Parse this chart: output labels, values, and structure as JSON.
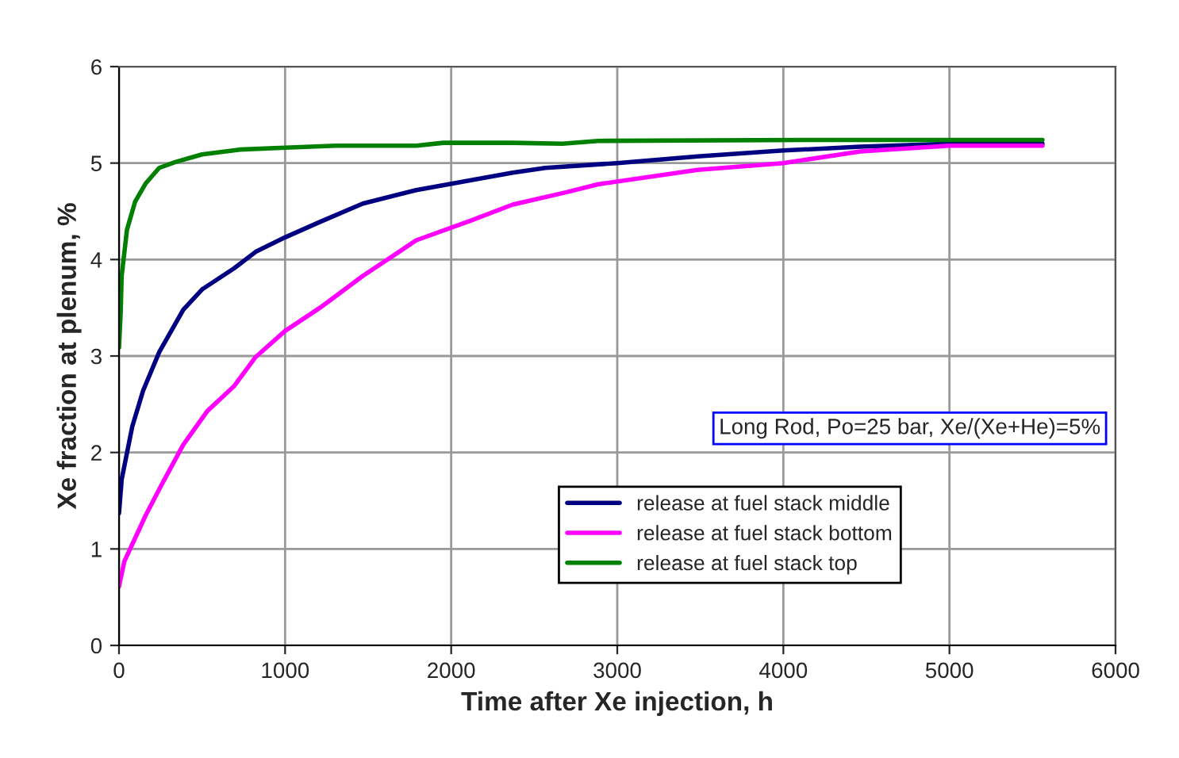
{
  "chart_data": {
    "type": "line",
    "xlabel": "Time after Xe injection, h",
    "ylabel": "Xe fraction at plenum, %",
    "annotations": [
      "Long Rod, Po=25 bar, Xe/(Xe+He)=5%"
    ],
    "xlim": [
      0,
      6000
    ],
    "xticks": [
      0,
      1000,
      2000,
      3000,
      4000,
      5000,
      6000
    ],
    "ylim": [
      0,
      6
    ],
    "yticks": [
      0,
      1,
      2,
      3,
      4,
      5,
      6
    ],
    "grid": true,
    "legend": "bottom right",
    "marker": "none",
    "line_style": "solid",
    "series": [
      {
        "name": "release at fuel stack middle",
        "color": "#000080",
        "x": [
          0,
          16,
          80,
          145,
          242,
          387,
          500,
          694,
          823,
          1000,
          1210,
          1468,
          1790,
          2113,
          2371,
          2567,
          3000,
          3484,
          4000,
          4464,
          5000,
          5560
        ],
        "values": [
          1.37,
          1.72,
          2.27,
          2.64,
          3.04,
          3.48,
          3.69,
          3.91,
          4.08,
          4.23,
          4.39,
          4.58,
          4.72,
          4.82,
          4.9,
          4.95,
          5.0,
          5.07,
          5.13,
          5.17,
          5.2,
          5.2
        ]
      },
      {
        "name": "release at fuel stack bottom",
        "color": "#ff00ff",
        "x": [
          0,
          32,
          161,
          258,
          387,
          532,
          694,
          823,
          1000,
          1210,
          1468,
          1790,
          2113,
          2371,
          2700,
          2883,
          3484,
          4000,
          4464,
          5000,
          5560
        ],
        "values": [
          0.61,
          0.87,
          1.35,
          1.67,
          2.08,
          2.43,
          2.69,
          2.99,
          3.26,
          3.5,
          3.83,
          4.2,
          4.4,
          4.57,
          4.7,
          4.78,
          4.93,
          5.0,
          5.12,
          5.18,
          5.18
        ]
      },
      {
        "name": "release at fuel stack top",
        "color": "#008000",
        "x": [
          0,
          10,
          16,
          48,
          97,
          161,
          242,
          339,
          500,
          726,
          1000,
          1306,
          1790,
          1952,
          2371,
          2670,
          2883,
          4137,
          5560
        ],
        "values": [
          3.09,
          3.45,
          3.83,
          4.31,
          4.6,
          4.79,
          4.95,
          5.01,
          5.09,
          5.14,
          5.16,
          5.18,
          5.18,
          5.21,
          5.21,
          5.2,
          5.23,
          5.24,
          5.24
        ]
      }
    ]
  }
}
